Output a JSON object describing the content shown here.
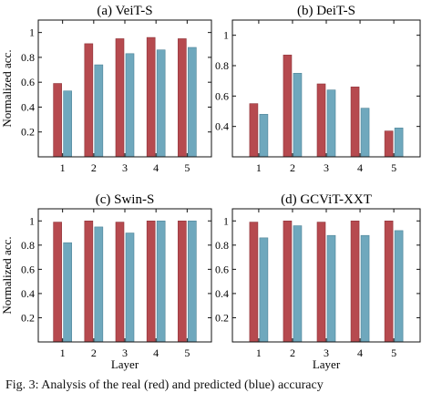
{
  "caption": "Fig. 3: Analysis of the real (red) and predicted (blue) accuracy",
  "colors": {
    "real": "#b64a4f",
    "predicted": "#6fa8bd",
    "axis": "#111111"
  },
  "chart_data": [
    {
      "type": "bar",
      "title": "(a) VeiT-S",
      "xlabel": "",
      "ylabel": "Normalized acc.",
      "categories": [
        "1",
        "2",
        "3",
        "4",
        "5"
      ],
      "ylim": [
        0,
        1.1
      ],
      "yticks": [
        "0.2",
        "0.4",
        "0.6",
        "0.8",
        "1"
      ],
      "series": [
        {
          "values": [
            0.59,
            0.91,
            0.95,
            0.96,
            0.95
          ]
        },
        {
          "values": [
            0.53,
            0.74,
            0.83,
            0.86,
            0.88
          ]
        }
      ]
    },
    {
      "type": "bar",
      "title": "(b) DeiT-S",
      "xlabel": "",
      "ylabel": "",
      "categories": [
        "1",
        "2",
        "3",
        "4",
        "5"
      ],
      "ylim": [
        0.2,
        1.1
      ],
      "yticks": [
        "0.4",
        "0.6",
        "0.8",
        "1"
      ],
      "series": [
        {
          "values": [
            0.55,
            0.87,
            0.68,
            0.66,
            0.37
          ]
        },
        {
          "values": [
            0.48,
            0.75,
            0.64,
            0.52,
            0.39
          ]
        }
      ]
    },
    {
      "type": "bar",
      "title": "(c) Swin-S",
      "xlabel": "Layer",
      "ylabel": "Normalized acc.",
      "categories": [
        "1",
        "2",
        "3",
        "4",
        "5"
      ],
      "ylim": [
        0,
        1.1
      ],
      "yticks": [
        "0.2",
        "0.4",
        "0.6",
        "0.8",
        "1"
      ],
      "series": [
        {
          "values": [
            0.99,
            1.0,
            0.99,
            1.0,
            1.0
          ]
        },
        {
          "values": [
            0.82,
            0.95,
            0.9,
            1.0,
            1.0
          ]
        }
      ]
    },
    {
      "type": "bar",
      "title": "(d) GCViT-XXT",
      "xlabel": "Layer",
      "ylabel": "",
      "categories": [
        "1",
        "2",
        "3",
        "4",
        "5"
      ],
      "ylim": [
        0,
        1.1
      ],
      "yticks": [
        "0.2",
        "0.4",
        "0.6",
        "0.8",
        "1"
      ],
      "series": [
        {
          "values": [
            0.99,
            1.0,
            0.99,
            1.0,
            1.0
          ]
        },
        {
          "values": [
            0.86,
            0.96,
            0.88,
            0.88,
            0.92
          ]
        }
      ]
    }
  ]
}
